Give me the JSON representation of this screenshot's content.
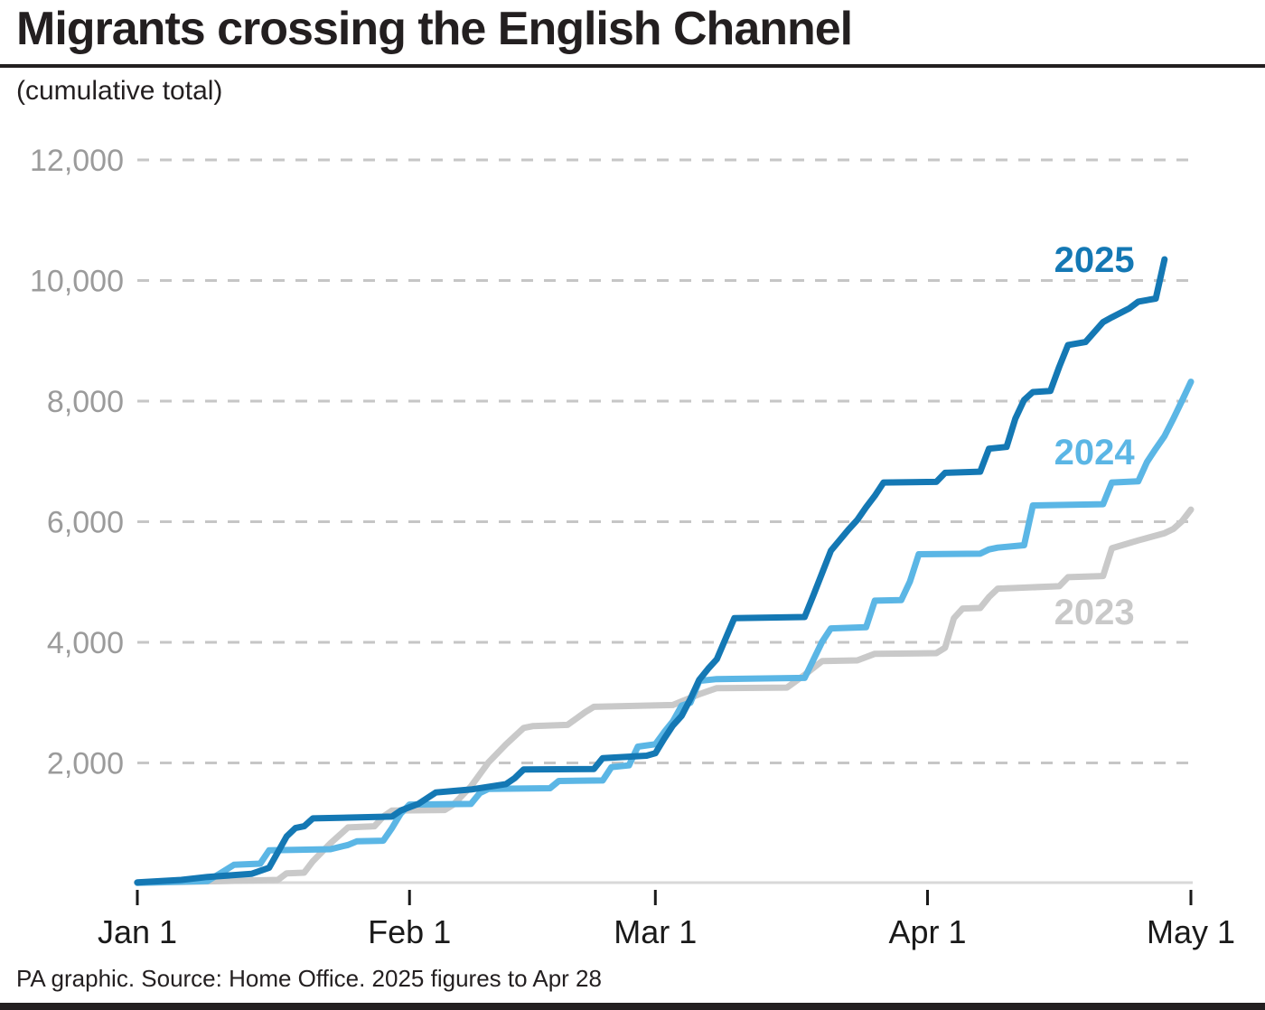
{
  "header": {
    "title": "Migrants crossing the English Channel",
    "subtitle": "(cumulative total)"
  },
  "footer": {
    "source": "PA graphic. Source: Home Office. 2025 figures to Apr 28"
  },
  "colors": {
    "series_2025": "#1478b4",
    "series_2024": "#5bb6e5",
    "series_2023": "#c9c9c9",
    "grid": "#c6c6c6",
    "baseline": "#d8d8d8",
    "tick": "#1a1a1a",
    "y_label": "#9b9b9b",
    "x_label": "#1a1a1a",
    "rule": "#231f20"
  },
  "chart_data": {
    "type": "line",
    "title": "Migrants crossing the English Channel",
    "subtitle": "(cumulative total)",
    "xlabel": "",
    "ylabel": "",
    "x_axis": {
      "unit": "days since Jan 1",
      "range": [
        0,
        120
      ],
      "tick_days": [
        0,
        31,
        59,
        90,
        120
      ],
      "tick_labels": [
        "Jan 1",
        "Feb 1",
        "Mar 1",
        "Apr 1",
        "May 1"
      ]
    },
    "y_axis": {
      "range": [
        0,
        12000
      ],
      "ticks": [
        2000,
        4000,
        6000,
        8000,
        10000,
        12000
      ],
      "tick_labels": [
        "2,000",
        "4,000",
        "6,000",
        "8,000",
        "10,000",
        "12,000"
      ],
      "grid": "dashed"
    },
    "legend_position": "inline-labels-right",
    "series": [
      {
        "name": "2023",
        "color": "#c9c9c9",
        "label": {
          "day": 109,
          "value": 4510
        },
        "points": [
          [
            0,
            10
          ],
          [
            16,
            60
          ],
          [
            17,
            170
          ],
          [
            19,
            180
          ],
          [
            20,
            370
          ],
          [
            22,
            670
          ],
          [
            24,
            930
          ],
          [
            27,
            950
          ],
          [
            28,
            1110
          ],
          [
            29,
            1210
          ],
          [
            35,
            1220
          ],
          [
            36,
            1310
          ],
          [
            38,
            1610
          ],
          [
            40,
            2010
          ],
          [
            42,
            2310
          ],
          [
            44,
            2580
          ],
          [
            45,
            2610
          ],
          [
            49,
            2630
          ],
          [
            51,
            2840
          ],
          [
            52,
            2930
          ],
          [
            61,
            2960
          ],
          [
            62,
            3020
          ],
          [
            64,
            3140
          ],
          [
            66,
            3240
          ],
          [
            74,
            3250
          ],
          [
            76,
            3460
          ],
          [
            78,
            3690
          ],
          [
            82,
            3700
          ],
          [
            84,
            3810
          ],
          [
            91,
            3820
          ],
          [
            92,
            3910
          ],
          [
            93,
            4400
          ],
          [
            94,
            4560
          ],
          [
            96,
            4570
          ],
          [
            97,
            4750
          ],
          [
            98,
            4890
          ],
          [
            105,
            4930
          ],
          [
            106,
            5080
          ],
          [
            110,
            5100
          ],
          [
            111,
            5560
          ],
          [
            114,
            5690
          ],
          [
            117,
            5810
          ],
          [
            118,
            5880
          ],
          [
            119,
            6010
          ],
          [
            120,
            6200
          ]
        ]
      },
      {
        "name": "2024",
        "color": "#5bb6e5",
        "label": {
          "day": 109,
          "value": 7160
        },
        "points": [
          [
            0,
            10
          ],
          [
            8,
            40
          ],
          [
            10,
            220
          ],
          [
            11,
            310
          ],
          [
            14,
            330
          ],
          [
            15,
            550
          ],
          [
            22,
            570
          ],
          [
            24,
            640
          ],
          [
            25,
            700
          ],
          [
            28,
            710
          ],
          [
            29,
            920
          ],
          [
            30,
            1160
          ],
          [
            31,
            1310
          ],
          [
            38,
            1320
          ],
          [
            39,
            1500
          ],
          [
            40,
            1570
          ],
          [
            47,
            1580
          ],
          [
            48,
            1700
          ],
          [
            53,
            1710
          ],
          [
            54,
            1930
          ],
          [
            56,
            1960
          ],
          [
            57,
            2270
          ],
          [
            59,
            2310
          ],
          [
            60,
            2510
          ],
          [
            61,
            2690
          ],
          [
            62,
            2950
          ],
          [
            63,
            3000
          ],
          [
            64,
            3360
          ],
          [
            66,
            3390
          ],
          [
            76,
            3410
          ],
          [
            77,
            3710
          ],
          [
            78,
            4010
          ],
          [
            79,
            4230
          ],
          [
            83,
            4250
          ],
          [
            84,
            4690
          ],
          [
            87,
            4700
          ],
          [
            88,
            5010
          ],
          [
            89,
            5460
          ],
          [
            96,
            5470
          ],
          [
            97,
            5540
          ],
          [
            98,
            5570
          ],
          [
            101,
            5610
          ],
          [
            102,
            6270
          ],
          [
            110,
            6290
          ],
          [
            111,
            6650
          ],
          [
            114,
            6670
          ],
          [
            115,
            6990
          ],
          [
            116,
            7210
          ],
          [
            117,
            7420
          ],
          [
            118,
            7710
          ],
          [
            119,
            8010
          ],
          [
            120,
            8320
          ]
        ]
      },
      {
        "name": "2025",
        "color": "#1478b4",
        "label": {
          "day": 109,
          "value": 10350
        },
        "points": [
          [
            0,
            20
          ],
          [
            5,
            60
          ],
          [
            8,
            110
          ],
          [
            13,
            160
          ],
          [
            15,
            260
          ],
          [
            16,
            520
          ],
          [
            17,
            780
          ],
          [
            18,
            920
          ],
          [
            19,
            950
          ],
          [
            20,
            1080
          ],
          [
            29,
            1110
          ],
          [
            30,
            1210
          ],
          [
            32,
            1320
          ],
          [
            34,
            1510
          ],
          [
            38,
            1560
          ],
          [
            42,
            1650
          ],
          [
            43,
            1750
          ],
          [
            44,
            1890
          ],
          [
            52,
            1900
          ],
          [
            53,
            2080
          ],
          [
            58,
            2120
          ],
          [
            59,
            2160
          ],
          [
            60,
            2400
          ],
          [
            61,
            2620
          ],
          [
            62,
            2780
          ],
          [
            63,
            3060
          ],
          [
            64,
            3380
          ],
          [
            65,
            3560
          ],
          [
            66,
            3720
          ],
          [
            67,
            4060
          ],
          [
            68,
            4400
          ],
          [
            76,
            4420
          ],
          [
            77,
            4780
          ],
          [
            78,
            5150
          ],
          [
            79,
            5520
          ],
          [
            81,
            5870
          ],
          [
            82,
            6030
          ],
          [
            83,
            6240
          ],
          [
            84,
            6430
          ],
          [
            85,
            6650
          ],
          [
            91,
            6660
          ],
          [
            92,
            6810
          ],
          [
            96,
            6830
          ],
          [
            97,
            7210
          ],
          [
            99,
            7240
          ],
          [
            100,
            7710
          ],
          [
            101,
            8020
          ],
          [
            102,
            8150
          ],
          [
            104,
            8170
          ],
          [
            105,
            8570
          ],
          [
            106,
            8930
          ],
          [
            108,
            8980
          ],
          [
            110,
            9310
          ],
          [
            111,
            9390
          ],
          [
            113,
            9540
          ],
          [
            114,
            9650
          ],
          [
            116,
            9700
          ],
          [
            117,
            10350
          ]
        ]
      }
    ]
  }
}
